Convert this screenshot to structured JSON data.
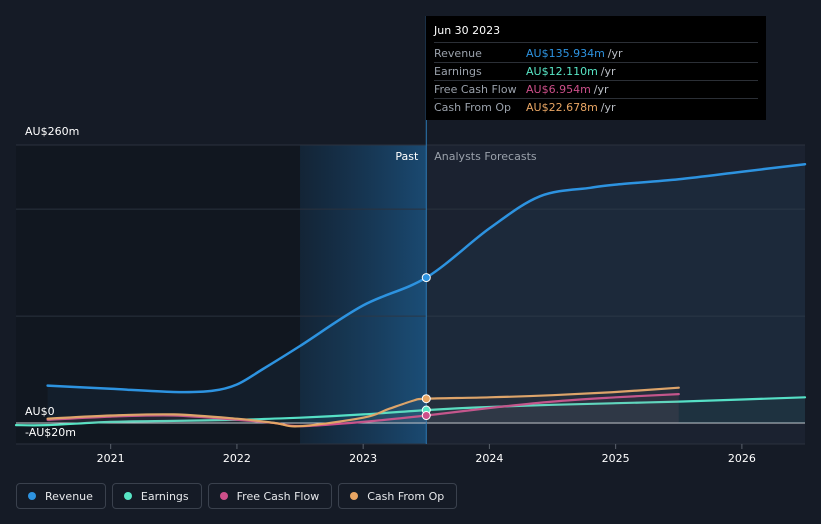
{
  "chart_data": {
    "type": "line",
    "ylim": [
      -20,
      260
    ],
    "y_labels": {
      "top": "AU$260m",
      "zero": "AU$0",
      "bottom": "-AU$20m"
    },
    "x_ticks": [
      "2021",
      "2022",
      "2023",
      "2024",
      "2025",
      "2026"
    ],
    "x_tick_values": [
      2021,
      2022,
      2023,
      2024,
      2025,
      2026
    ],
    "xlim": [
      2020.25,
      2026.5
    ],
    "past_label": "Past",
    "forecast_label": "Analysts Forecasts",
    "divider_x": 2023.5,
    "shade_from_x": 2022.5,
    "series": [
      {
        "name": "Revenue",
        "color": "#2d93e0",
        "x": [
          2020.5,
          2021.0,
          2021.5,
          2021.8,
          2022.0,
          2022.2,
          2022.5,
          2023.0,
          2023.5,
          2024.0,
          2024.4,
          2024.8,
          2025.0,
          2025.5,
          2026.0,
          2026.5
        ],
        "values": [
          35,
          32,
          29,
          30,
          36,
          50,
          72,
          110,
          136,
          182,
          212,
          220,
          223,
          228,
          235,
          242
        ]
      },
      {
        "name": "Earnings",
        "color": "#58e5c5",
        "x": [
          2020.25,
          2020.5,
          2021.0,
          2021.5,
          2022.0,
          2022.5,
          2023.0,
          2023.5,
          2024.0,
          2024.5,
          2025.0,
          2025.5,
          2026.0,
          2026.5
        ],
        "values": [
          -2,
          -2,
          1,
          2,
          3,
          5,
          8,
          12.1,
          15,
          17,
          18.5,
          20,
          22,
          24
        ]
      },
      {
        "name": "Free Cash Flow",
        "color": "#cd4f8a",
        "x": [
          2020.5,
          2021.0,
          2021.5,
          2022.0,
          2022.3,
          2022.5,
          2023.0,
          2023.5,
          2024.0,
          2024.5,
          2025.0,
          2025.5
        ],
        "values": [
          3,
          6,
          7,
          3,
          0,
          -3,
          1,
          7,
          14,
          20,
          24,
          27
        ]
      },
      {
        "name": "Cash From Op",
        "color": "#e8a563",
        "x": [
          2020.5,
          2021.0,
          2021.5,
          2022.0,
          2022.3,
          2022.5,
          2023.0,
          2023.2,
          2023.4,
          2023.5,
          2024.0,
          2024.5,
          2025.0,
          2025.5
        ],
        "values": [
          4,
          7,
          8,
          4,
          0,
          -3,
          5,
          13,
          21,
          22.7,
          24,
          26,
          29,
          33
        ]
      }
    ],
    "tooltip": {
      "date": "Jun 30 2023",
      "unit": "/yr",
      "rows": [
        {
          "label": "Revenue",
          "value": "AU$135.934m",
          "color": "#2d93e0"
        },
        {
          "label": "Earnings",
          "value": "AU$12.110m",
          "color": "#58e5c5"
        },
        {
          "label": "Free Cash Flow",
          "value": "AU$6.954m",
          "color": "#cd4f8a"
        },
        {
          "label": "Cash From Op",
          "value": "AU$22.678m",
          "color": "#e8a563"
        }
      ]
    },
    "highlight_x": 2023.5,
    "highlight_values": [
      136,
      12.1,
      7,
      22.7
    ]
  },
  "legend": [
    {
      "label": "Revenue",
      "color": "#2d93e0"
    },
    {
      "label": "Earnings",
      "color": "#58e5c5"
    },
    {
      "label": "Free Cash Flow",
      "color": "#cd4f8a"
    },
    {
      "label": "Cash From Op",
      "color": "#e8a563"
    }
  ]
}
